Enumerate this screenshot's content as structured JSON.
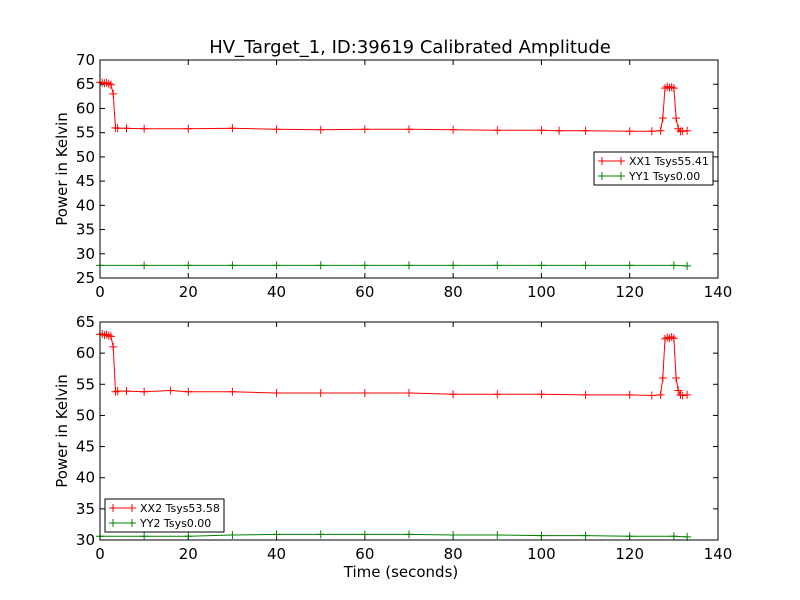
{
  "title": "HV_Target_1, ID:39619 Calibrated Amplitude",
  "chart_data": [
    {
      "type": "line",
      "xlabel": "",
      "ylabel": "Power in Kelvin",
      "xlim": [
        0,
        140
      ],
      "ylim": [
        25,
        70
      ],
      "xticks": [
        0,
        20,
        40,
        60,
        80,
        100,
        120,
        140
      ],
      "yticks": [
        25,
        30,
        35,
        40,
        45,
        50,
        55,
        60,
        65,
        70
      ],
      "grid": false,
      "legend_position": "center-right",
      "marker": "+",
      "series": [
        {
          "name": "XX1 Tsys55.41",
          "color": "#ff0000",
          "x": [
            0,
            0.5,
            1,
            1.5,
            2,
            2.5,
            3,
            3.5,
            4,
            6,
            10,
            20,
            30,
            40,
            50,
            60,
            70,
            80,
            90,
            100,
            104,
            110,
            120,
            125,
            127,
            127.5,
            128,
            128.5,
            129,
            129.5,
            130,
            130.5,
            131,
            131.5,
            132,
            133
          ],
          "y": [
            65.4,
            65.3,
            65.2,
            65.3,
            65.1,
            64.9,
            63.0,
            56.0,
            55.9,
            55.9,
            55.8,
            55.8,
            55.9,
            55.7,
            55.6,
            55.7,
            55.7,
            55.6,
            55.5,
            55.5,
            55.4,
            55.4,
            55.3,
            55.3,
            55.4,
            58.0,
            64.2,
            64.5,
            64.3,
            64.4,
            64.2,
            58.0,
            55.8,
            55.3,
            55.3,
            55.4
          ]
        },
        {
          "name": "YY1 Tsys0.00",
          "color": "#008000",
          "x": [
            0,
            10,
            20,
            30,
            40,
            50,
            60,
            70,
            80,
            90,
            100,
            110,
            120,
            130,
            133
          ],
          "y": [
            27.6,
            27.6,
            27.6,
            27.6,
            27.6,
            27.6,
            27.6,
            27.6,
            27.6,
            27.6,
            27.6,
            27.6,
            27.6,
            27.6,
            27.5
          ]
        }
      ]
    },
    {
      "type": "line",
      "xlabel": "Time (seconds)",
      "ylabel": "Power in Kelvin",
      "xlim": [
        0,
        140
      ],
      "ylim": [
        30,
        65
      ],
      "xticks": [
        0,
        20,
        40,
        60,
        80,
        100,
        120,
        140
      ],
      "yticks": [
        30,
        35,
        40,
        45,
        50,
        55,
        60,
        65
      ],
      "grid": false,
      "legend_position": "lower-left",
      "marker": "+",
      "series": [
        {
          "name": "XX2 Tsys53.58",
          "color": "#ff0000",
          "x": [
            0,
            0.5,
            1,
            1.5,
            2,
            2.5,
            3,
            3.5,
            4,
            6,
            10,
            16,
            20,
            30,
            40,
            50,
            60,
            70,
            80,
            90,
            100,
            110,
            120,
            125,
            127,
            127.5,
            128,
            128.5,
            129,
            129.5,
            130,
            130.5,
            131,
            131.5,
            132,
            133
          ],
          "y": [
            63.0,
            63.1,
            62.9,
            63.0,
            62.8,
            62.7,
            61.0,
            53.8,
            53.9,
            53.9,
            53.8,
            54.0,
            53.8,
            53.8,
            53.6,
            53.6,
            53.6,
            53.6,
            53.4,
            53.4,
            53.4,
            53.3,
            53.3,
            53.2,
            53.3,
            56.0,
            62.3,
            62.5,
            62.4,
            62.6,
            62.4,
            56.0,
            54.0,
            53.3,
            53.2,
            53.3
          ]
        },
        {
          "name": "YY2 Tsys0.00",
          "color": "#008000",
          "x": [
            0,
            10,
            20,
            30,
            40,
            50,
            60,
            70,
            80,
            90,
            100,
            110,
            120,
            130,
            133
          ],
          "y": [
            30.6,
            30.6,
            30.6,
            30.8,
            30.9,
            30.9,
            30.9,
            30.9,
            30.8,
            30.8,
            30.7,
            30.7,
            30.6,
            30.6,
            30.5
          ]
        }
      ]
    }
  ]
}
